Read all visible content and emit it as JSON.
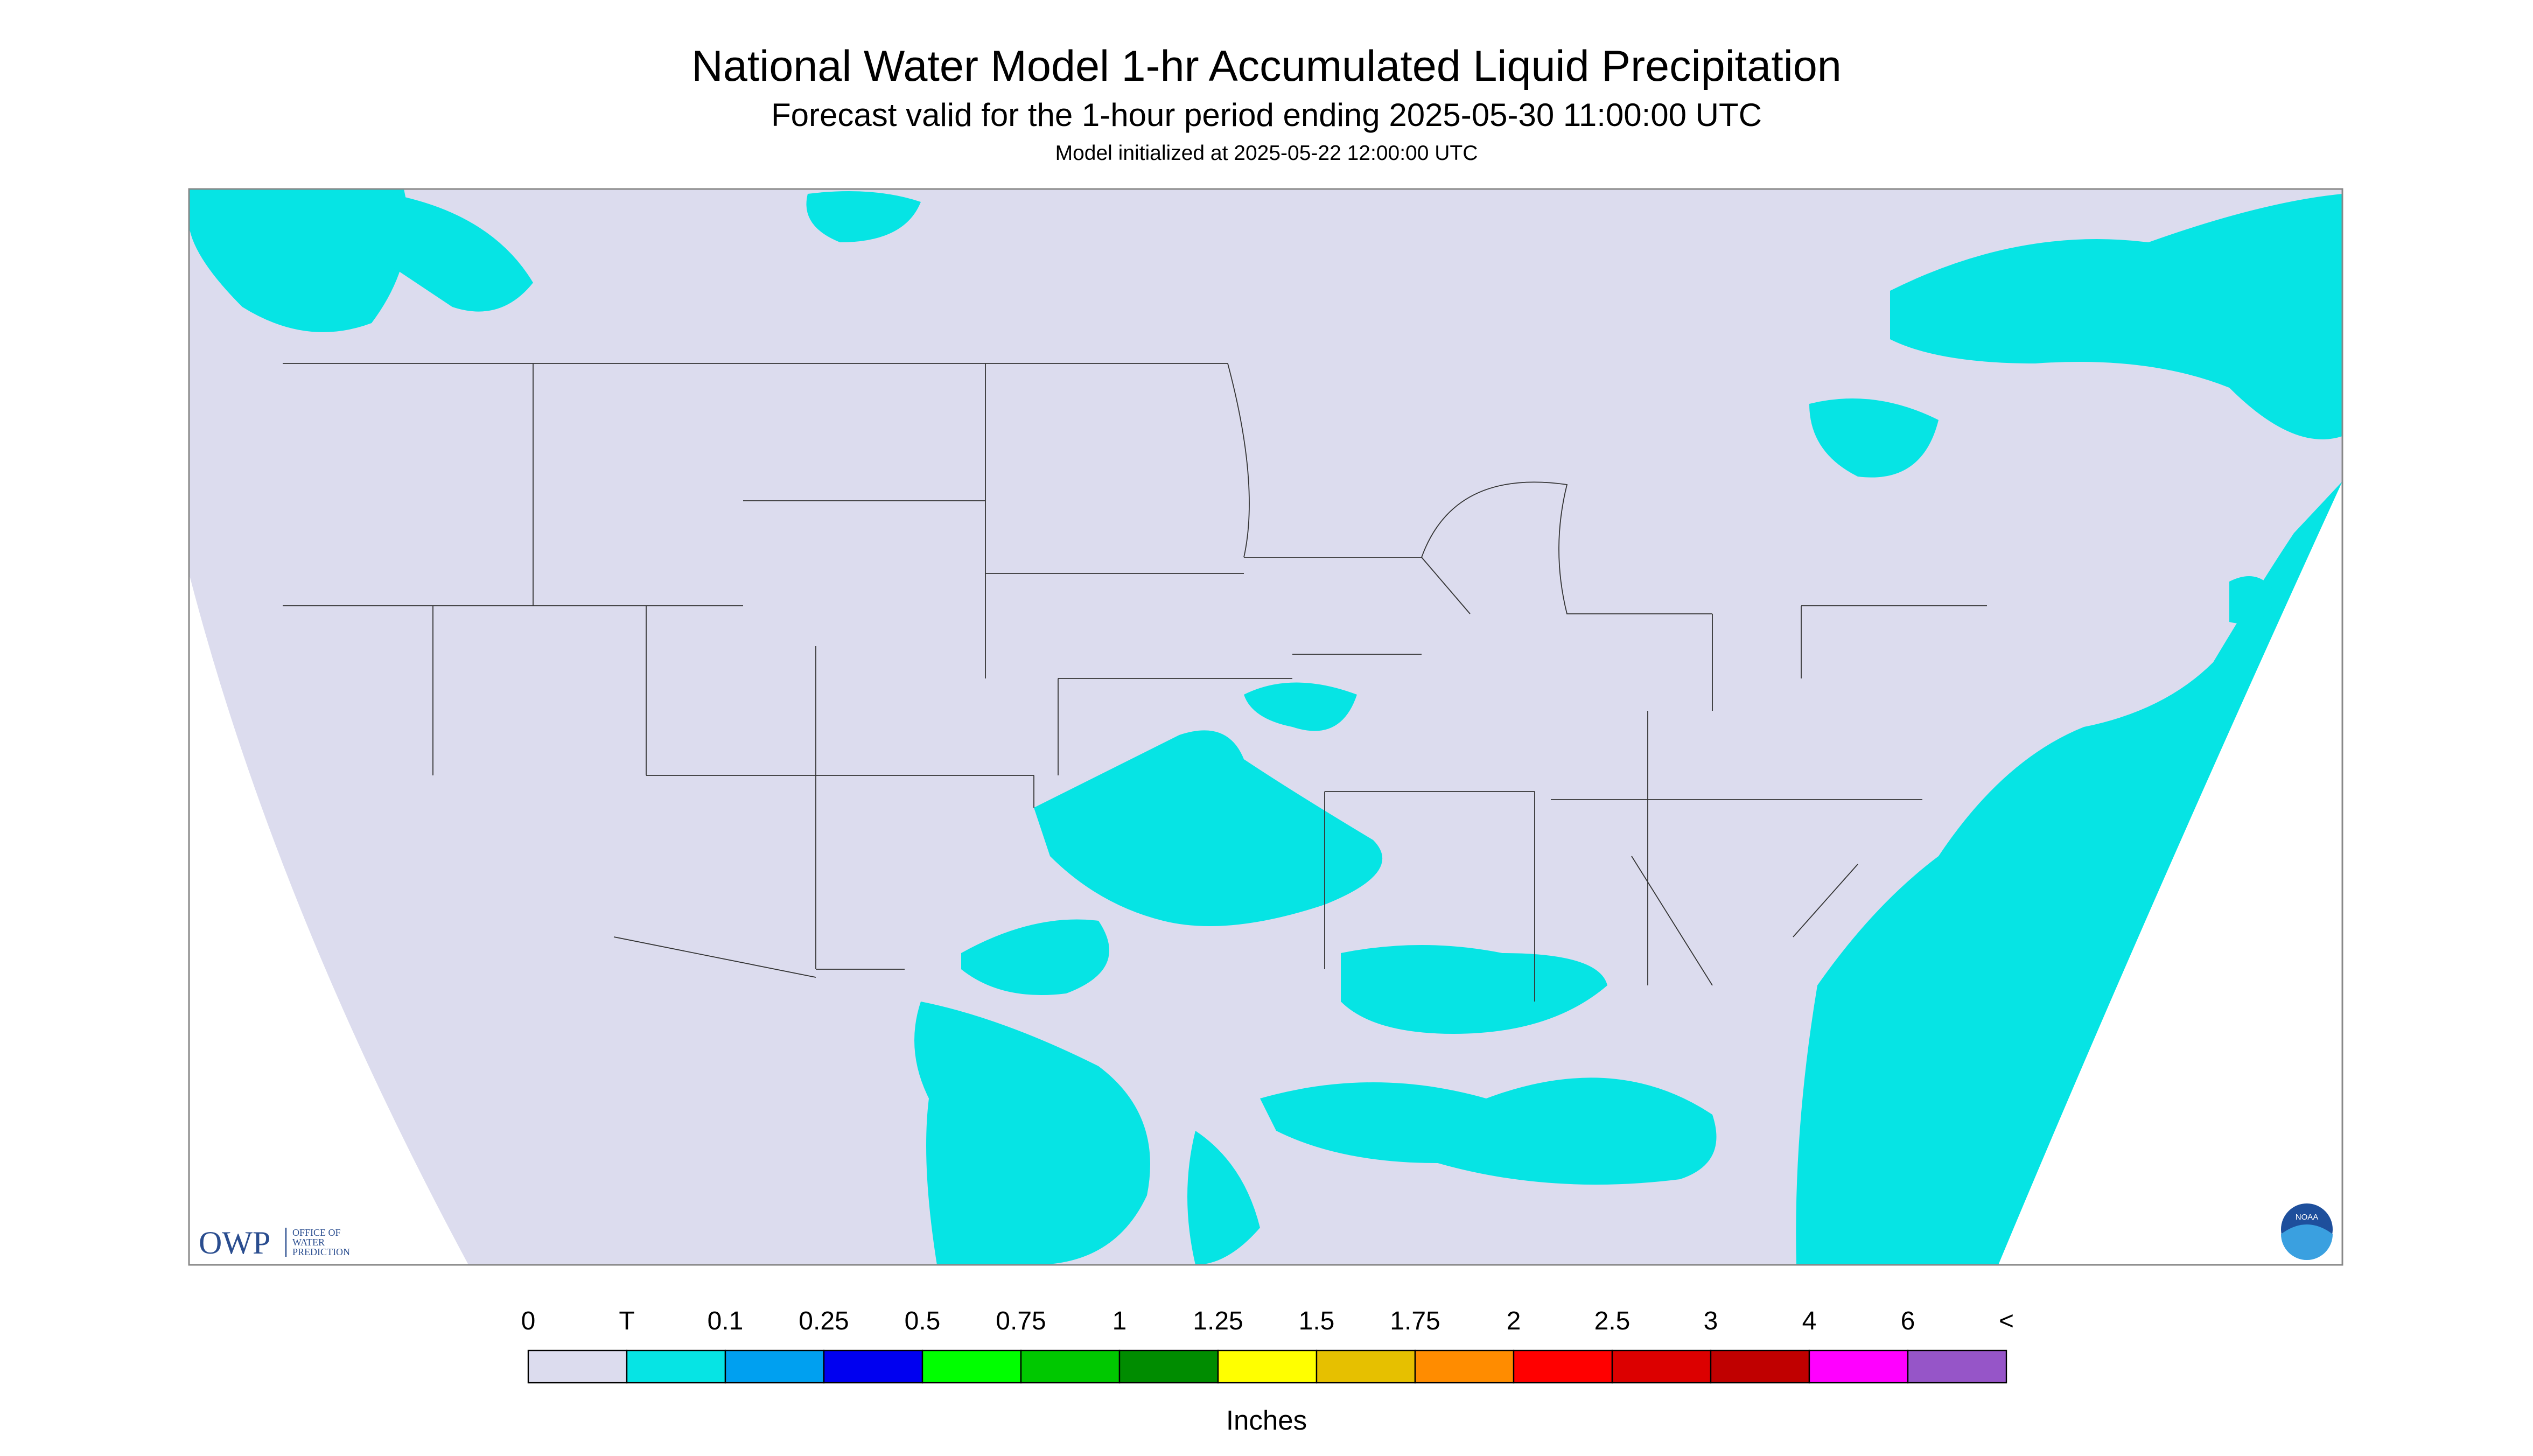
{
  "header": {
    "title": "National Water Model 1-hr Accumulated Liquid Precipitation",
    "subtitle": "Forecast valid for the 1-hour period ending 2025-05-30 11:00:00 UTC",
    "initialized": "Model initialized at 2025-05-22 12:00:00 UTC"
  },
  "legend": {
    "labels": [
      "0",
      "T",
      "0.1",
      "0.25",
      "0.5",
      "0.75",
      "1",
      "1.25",
      "1.5",
      "1.75",
      "2",
      "2.5",
      "3",
      "4",
      "6",
      "<"
    ],
    "colors": [
      "#dcdcee",
      "#06e4e4",
      "#00a0f0",
      "#0000f0",
      "#00ff00",
      "#00c800",
      "#008c00",
      "#ffff00",
      "#e6c000",
      "#ff8c00",
      "#ff0000",
      "#dc0000",
      "#c00000",
      "#ff00ff",
      "#9655c8"
    ],
    "unit": "Inches"
  },
  "logos": {
    "owp": "OWP",
    "owp_line1": "OFFICE OF",
    "owp_line2": "WATER",
    "owp_line3": "PREDICTION",
    "noaa": "NOAA"
  }
}
